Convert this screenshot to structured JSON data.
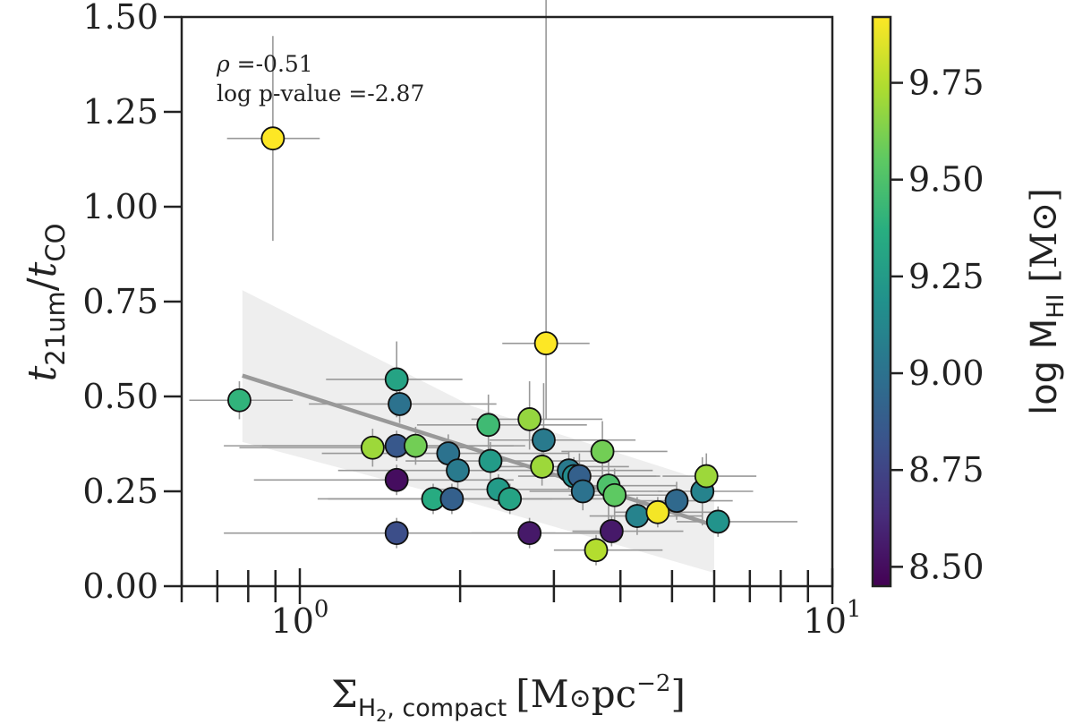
{
  "chart_data": {
    "type": "scatter",
    "xscale": "log",
    "xlim": [
      0.6,
      10
    ],
    "ylim": [
      0.0,
      1.5
    ],
    "xlabel": {
      "main": "Σ",
      "sub": "H",
      "sub2": "2",
      "sub3": ", compact",
      "unit": "[M",
      "sun": "⊙",
      "unit2": "pc",
      "sup": "−2",
      "close": "]"
    },
    "ylabel": {
      "t1": "t",
      "s1": "21um",
      "slash": "/",
      "t2": "t",
      "s2": "CO"
    },
    "xtick_labels": [
      {
        "value": 1,
        "base": "10",
        "exp": "0"
      },
      {
        "value": 10,
        "base": "10",
        "exp": "1"
      }
    ],
    "ytick_labels": [
      "0.00",
      "0.25",
      "0.50",
      "0.75",
      "1.00",
      "1.25",
      "1.50"
    ],
    "yticks": [
      0,
      0.25,
      0.5,
      0.75,
      1.0,
      1.25,
      1.5
    ],
    "annotation": {
      "rho_symbol": "ρ",
      "rho_text": " =-0.51",
      "pvalue_text": "log p-value =-2.87"
    },
    "colorbar": {
      "label": {
        "pre": "log M",
        "sub": "HI",
        "unit": " [M",
        "sun": "⊙",
        "close": "]"
      },
      "range": [
        8.45,
        9.92
      ],
      "ticks": [
        8.5,
        8.75,
        9.0,
        9.25,
        9.5,
        9.75
      ],
      "tick_labels": [
        "8.50",
        "8.75",
        "9.00",
        "9.25",
        "9.50",
        "9.75"
      ]
    },
    "fit": {
      "x_start": 0.78,
      "y_start": 0.555,
      "x_end": 6.0,
      "y_end": 0.16,
      "band_upper": [
        0.78,
        0.475,
        0.27
      ],
      "band_lower": [
        0.38,
        0.22,
        0.035
      ],
      "band_x": [
        0.78,
        2.1,
        6.0
      ],
      "line_color": "#999999",
      "band_color": "#eeeeee",
      "errorbar_color": "#999999"
    },
    "points": [
      {
        "x": 0.89,
        "y": 1.18,
        "xerr": [
          0.16,
          0.2
        ],
        "yerr": [
          0.27,
          0.27
        ],
        "c": 9.92
      },
      {
        "x": 2.9,
        "y": 0.64,
        "xerr": [
          0.5,
          0.6
        ],
        "yerr": [
          0.2,
          1.0
        ],
        "c": 9.92
      },
      {
        "x": 0.77,
        "y": 0.49,
        "xerr": [
          0.15,
          0.2
        ],
        "yerr": [
          0.05,
          0.05
        ],
        "c": 9.4
      },
      {
        "x": 1.52,
        "y": 0.545,
        "xerr": [
          0.4,
          0.5
        ],
        "yerr": [
          0.1,
          0.1
        ],
        "c": 9.3
      },
      {
        "x": 1.54,
        "y": 0.48,
        "xerr": [
          0.5,
          0.8
        ],
        "yerr": [
          0.05,
          0.05
        ],
        "c": 9.0
      },
      {
        "x": 1.37,
        "y": 0.365,
        "xerr": [
          0.6,
          0.7
        ],
        "yerr": [
          0.05,
          0.05
        ],
        "c": 9.7
      },
      {
        "x": 1.52,
        "y": 0.37,
        "xerr": [
          0.8,
          1.0
        ],
        "yerr": [
          0.04,
          0.04
        ],
        "c": 8.85
      },
      {
        "x": 1.65,
        "y": 0.37,
        "xerr": [
          0.8,
          1.0
        ],
        "yerr": [
          0.05,
          0.05
        ],
        "c": 9.6
      },
      {
        "x": 1.52,
        "y": 0.28,
        "xerr": [
          0.7,
          1.0
        ],
        "yerr": [
          0.04,
          0.04
        ],
        "c": 8.5
      },
      {
        "x": 1.52,
        "y": 0.14,
        "xerr": [
          0.8,
          1.5
        ],
        "yerr": [
          0.04,
          0.04
        ],
        "c": 8.8
      },
      {
        "x": 1.78,
        "y": 0.23,
        "xerr": [
          0.7,
          1.2
        ],
        "yerr": [
          0.04,
          0.04
        ],
        "c": 9.35
      },
      {
        "x": 1.9,
        "y": 0.35,
        "xerr": [
          0.8,
          1.3
        ],
        "yerr": [
          0.05,
          0.05
        ],
        "c": 9.0
      },
      {
        "x": 1.93,
        "y": 0.23,
        "xerr": [
          0.8,
          1.3
        ],
        "yerr": [
          0.04,
          0.04
        ],
        "c": 8.9
      },
      {
        "x": 1.98,
        "y": 0.305,
        "xerr": [
          0.8,
          1.4
        ],
        "yerr": [
          0.05,
          0.05
        ],
        "c": 9.05
      },
      {
        "x": 2.26,
        "y": 0.425,
        "xerr": [
          0.6,
          1.2
        ],
        "yerr": [
          0.08,
          0.08
        ],
        "c": 9.45
      },
      {
        "x": 2.28,
        "y": 0.33,
        "xerr": [
          0.7,
          1.4
        ],
        "yerr": [
          0.05,
          0.05
        ],
        "c": 9.25
      },
      {
        "x": 2.36,
        "y": 0.255,
        "xerr": [
          0.6,
          1.2
        ],
        "yerr": [
          0.04,
          0.04
        ],
        "c": 9.25
      },
      {
        "x": 2.48,
        "y": 0.23,
        "xerr": [
          0.6,
          1.3
        ],
        "yerr": [
          0.04,
          0.04
        ],
        "c": 9.3
      },
      {
        "x": 2.7,
        "y": 0.44,
        "xerr": [
          0.6,
          1.0
        ],
        "yerr": [
          0.08,
          0.1
        ],
        "c": 9.68
      },
      {
        "x": 2.7,
        "y": 0.14,
        "xerr": [
          0.6,
          1.2
        ],
        "yerr": [
          0.04,
          0.04
        ],
        "c": 8.55
      },
      {
        "x": 2.87,
        "y": 0.385,
        "xerr": [
          0.6,
          1.4
        ],
        "yerr": [
          0.1,
          0.15
        ],
        "c": 9.05
      },
      {
        "x": 2.85,
        "y": 0.315,
        "xerr": [
          0.6,
          1.3
        ],
        "yerr": [
          0.05,
          0.05
        ],
        "c": 9.7
      },
      {
        "x": 3.2,
        "y": 0.305,
        "xerr": [
          0.7,
          1.4
        ],
        "yerr": [
          0.05,
          0.05
        ],
        "c": 9.05
      },
      {
        "x": 3.27,
        "y": 0.29,
        "xerr": [
          0.7,
          1.4
        ],
        "yerr": [
          0.05,
          0.05
        ],
        "c": 9.15
      },
      {
        "x": 3.35,
        "y": 0.29,
        "xerr": [
          0.6,
          1.4
        ],
        "yerr": [
          0.06,
          0.06
        ],
        "c": 8.9
      },
      {
        "x": 3.4,
        "y": 0.25,
        "xerr": [
          0.7,
          1.4
        ],
        "yerr": [
          0.05,
          0.05
        ],
        "c": 9.0
      },
      {
        "x": 3.7,
        "y": 0.355,
        "xerr": [
          0.6,
          1.2
        ],
        "yerr": [
          0.08,
          0.08
        ],
        "c": 9.6
      },
      {
        "x": 3.8,
        "y": 0.265,
        "xerr": [
          0.6,
          1.3
        ],
        "yerr": [
          0.1,
          0.1
        ],
        "c": 9.5
      },
      {
        "x": 3.9,
        "y": 0.24,
        "xerr": [
          0.7,
          1.2
        ],
        "yerr": [
          0.07,
          0.07
        ],
        "c": 9.55
      },
      {
        "x": 3.85,
        "y": 0.145,
        "xerr": [
          0.6,
          1.4
        ],
        "yerr": [
          0.04,
          0.04
        ],
        "c": 8.55
      },
      {
        "x": 3.6,
        "y": 0.095,
        "xerr": [
          0.6,
          1.2
        ],
        "yerr": [
          0.04,
          0.04
        ],
        "c": 9.75
      },
      {
        "x": 4.3,
        "y": 0.185,
        "xerr": [
          0.8,
          1.4
        ],
        "yerr": [
          0.05,
          0.05
        ],
        "c": 9.1
      },
      {
        "x": 4.7,
        "y": 0.195,
        "xerr": [
          0.8,
          1.4
        ],
        "yerr": [
          0.04,
          0.04
        ],
        "c": 9.9
      },
      {
        "x": 5.1,
        "y": 0.225,
        "xerr": [
          0.8,
          1.4
        ],
        "yerr": [
          0.05,
          0.05
        ],
        "c": 8.95
      },
      {
        "x": 5.7,
        "y": 0.25,
        "xerr": [
          1.0,
          1.4
        ],
        "yerr": [
          0.09,
          0.09
        ],
        "c": 9.1
      },
      {
        "x": 5.8,
        "y": 0.29,
        "xerr": [
          1.0,
          1.4
        ],
        "yerr": [
          0.06,
          0.06
        ],
        "c": 9.7
      },
      {
        "x": 6.1,
        "y": 0.17,
        "xerr": [
          1.0,
          2.5
        ],
        "yerr": [
          0.04,
          0.04
        ],
        "c": 9.2
      }
    ]
  }
}
